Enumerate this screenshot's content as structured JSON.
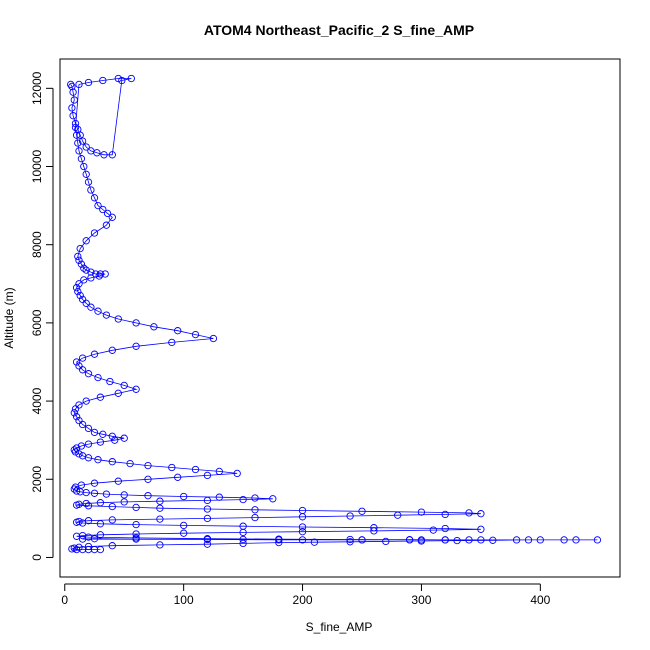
{
  "chart_data": {
    "type": "scatter",
    "title": "ATOM4 Northeast_Pacific_2 S_fine_AMP",
    "xlabel": "S_fine_AMP",
    "ylabel": "Altitude (m)",
    "xlim": [
      -4,
      467
    ],
    "ylim": [
      -500,
      12750
    ],
    "xticks": [
      "0",
      "100",
      "200",
      "300",
      "400"
    ],
    "xtick_values": [
      0,
      100,
      200,
      300,
      400
    ],
    "yticks": [
      "0",
      "2000",
      "4000",
      "6000",
      "8000",
      "10000",
      "12000"
    ],
    "ytick_values": [
      0,
      2000,
      4000,
      6000,
      8000,
      10000,
      12000
    ],
    "grid": false,
    "legend": "none",
    "marker": "open-circle",
    "line": true,
    "color": "#0000ff",
    "series": [
      {
        "x": [
          5,
          6,
          7,
          8,
          6,
          7,
          9,
          11,
          13,
          15,
          18,
          22,
          27,
          33,
          40,
          48,
          56,
          45,
          32,
          20,
          12,
          9,
          10,
          11,
          12,
          14,
          16,
          18,
          20,
          22,
          25,
          28,
          32,
          36,
          40,
          35,
          25,
          18,
          13,
          11,
          12,
          14,
          16,
          18,
          22,
          26,
          30,
          34,
          29,
          22,
          16,
          12,
          10,
          11,
          13,
          15,
          18,
          22,
          28,
          35,
          45,
          60,
          75,
          95,
          110,
          125,
          90,
          60,
          40,
          25,
          15,
          10,
          12,
          15,
          20,
          28,
          38,
          50,
          60,
          45,
          30,
          18,
          12,
          9,
          8,
          10,
          12,
          15,
          20,
          25,
          32,
          40,
          50,
          42,
          30,
          20,
          14,
          10,
          8,
          9,
          12,
          15,
          20,
          28,
          40,
          55,
          70,
          90,
          110,
          130,
          145,
          120,
          95,
          70,
          45,
          25,
          14,
          9,
          8,
          10,
          13,
          18,
          25,
          35,
          50,
          70,
          100,
          130,
          160,
          175,
          150,
          120,
          80,
          50,
          30,
          18,
          12,
          10,
          20,
          40,
          60,
          80,
          120,
          160,
          200,
          250,
          300,
          340,
          350,
          320,
          280,
          240,
          200,
          160,
          120,
          80,
          40,
          20,
          12,
          10,
          15,
          30,
          60,
          100,
          150,
          200,
          260,
          320,
          350,
          310,
          260,
          200,
          150,
          100,
          60,
          30,
          15,
          10,
          20,
          60,
          120,
          180,
          240,
          290,
          320,
          340,
          300,
          250,
          180,
          120,
          60,
          25,
          15,
          150,
          200,
          250,
          290,
          320,
          350,
          380,
          400,
          430,
          448,
          420,
          390,
          360,
          330,
          300,
          270,
          240,
          210,
          180,
          150,
          120,
          80,
          40,
          20,
          12,
          8,
          6,
          10,
          15,
          20,
          25,
          30
        ],
        "y": [
          12100,
          12050,
          11900,
          11700,
          11500,
          11300,
          11100,
          10950,
          10800,
          10650,
          10500,
          10400,
          10350,
          10300,
          10300,
          12200,
          12250,
          12250,
          12200,
          12150,
          12100,
          11000,
          10800,
          10600,
          10400,
          10200,
          10000,
          9800,
          9600,
          9400,
          9200,
          9000,
          8900,
          8800,
          8700,
          8500,
          8300,
          8100,
          7900,
          7700,
          7600,
          7500,
          7400,
          7350,
          7300,
          7250,
          7250,
          7250,
          7200,
          7150,
          7100,
          7000,
          6900,
          6800,
          6700,
          6600,
          6500,
          6400,
          6300,
          6200,
          6100,
          6000,
          5900,
          5800,
          5700,
          5600,
          5500,
          5400,
          5300,
          5200,
          5100,
          5000,
          4900,
          4800,
          4700,
          4600,
          4500,
          4400,
          4300,
          4200,
          4100,
          4000,
          3900,
          3800,
          3700,
          3600,
          3500,
          3400,
          3300,
          3200,
          3150,
          3100,
          3050,
          3000,
          2950,
          2900,
          2850,
          2800,
          2750,
          2700,
          2650,
          2600,
          2550,
          2500,
          2450,
          2400,
          2350,
          2300,
          2250,
          2200,
          2150,
          2100,
          2050,
          2000,
          1950,
          1900,
          1850,
          1800,
          1750,
          1700,
          1680,
          1660,
          1640,
          1620,
          1600,
          1580,
          1560,
          1540,
          1520,
          1500,
          1480,
          1460,
          1440,
          1420,
          1400,
          1380,
          1360,
          1340,
          1320,
          1300,
          1280,
          1260,
          1240,
          1220,
          1200,
          1180,
          1160,
          1140,
          1120,
          1100,
          1080,
          1060,
          1040,
          1020,
          1000,
          980,
          960,
          940,
          920,
          900,
          880,
          860,
          840,
          820,
          800,
          780,
          760,
          740,
          720,
          700,
          680,
          660,
          640,
          620,
          600,
          580,
          560,
          540,
          520,
          500,
          480,
          470,
          460,
          455,
          450,
          450,
          450,
          450,
          450,
          460,
          470,
          480,
          470,
          460,
          450,
          450,
          450,
          450,
          450,
          450,
          450,
          450,
          450,
          450,
          450,
          440,
          430,
          420,
          410,
          400,
          390,
          380,
          360,
          340,
          320,
          300,
          280,
          260,
          240,
          220,
          200,
          200,
          200,
          200,
          200
        ]
      }
    ]
  }
}
